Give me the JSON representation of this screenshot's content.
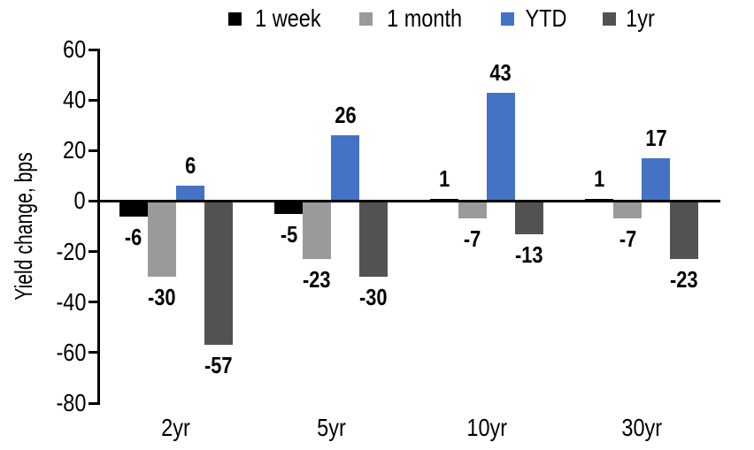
{
  "chart_data": {
    "type": "bar",
    "ylabel": "Yield change, bps",
    "categories": [
      "2yr",
      "5yr",
      "10yr",
      "30yr"
    ],
    "series": [
      {
        "name": "1 week",
        "color": "#000000",
        "values": [
          -6,
          -5,
          1,
          1
        ]
      },
      {
        "name": "1 month",
        "color": "#9A9A9A",
        "values": [
          -30,
          -23,
          -7,
          -7
        ]
      },
      {
        "name": "YTD",
        "color": "#4472C4",
        "values": [
          6,
          26,
          43,
          17
        ]
      },
      {
        "name": "1yr",
        "color": "#525252",
        "values": [
          -57,
          -30,
          -13,
          -23
        ]
      }
    ],
    "ylim": [
      -80,
      60
    ],
    "ytick_step": 20,
    "yticks": [
      60,
      40,
      20,
      0,
      -20,
      -40,
      -60,
      -80
    ],
    "legend_position": "top",
    "grid": false,
    "axis_color": "#000000",
    "data_labels": true
  }
}
